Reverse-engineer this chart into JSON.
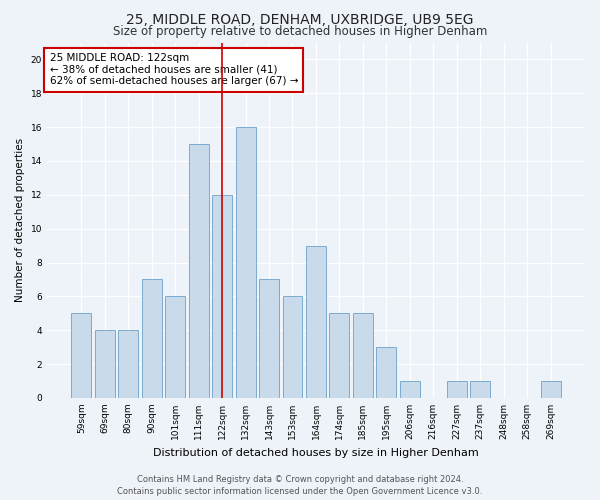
{
  "title1": "25, MIDDLE ROAD, DENHAM, UXBRIDGE, UB9 5EG",
  "title2": "Size of property relative to detached houses in Higher Denham",
  "xlabel": "Distribution of detached houses by size in Higher Denham",
  "ylabel": "Number of detached properties",
  "categories": [
    "59sqm",
    "69sqm",
    "80sqm",
    "90sqm",
    "101sqm",
    "111sqm",
    "122sqm",
    "132sqm",
    "143sqm",
    "153sqm",
    "164sqm",
    "174sqm",
    "185sqm",
    "195sqm",
    "206sqm",
    "216sqm",
    "227sqm",
    "237sqm",
    "248sqm",
    "258sqm",
    "269sqm"
  ],
  "values": [
    5,
    4,
    4,
    7,
    6,
    15,
    12,
    16,
    7,
    6,
    9,
    5,
    5,
    3,
    1,
    0,
    1,
    1,
    0,
    0,
    1
  ],
  "highlight_index": 6,
  "bar_color": "#c9daea",
  "bar_edge_color": "#7aabcf",
  "highlight_line_color": "#cc0000",
  "annotation_text": "25 MIDDLE ROAD: 122sqm\n← 38% of detached houses are smaller (41)\n62% of semi-detached houses are larger (67) →",
  "annotation_box_color": "#ffffff",
  "annotation_box_edge_color": "#cc0000",
  "ylim": [
    0,
    21
  ],
  "yticks": [
    0,
    2,
    4,
    6,
    8,
    10,
    12,
    14,
    16,
    18,
    20
  ],
  "footer_line1": "Contains HM Land Registry data © Crown copyright and database right 2024.",
  "footer_line2": "Contains public sector information licensed under the Open Government Licence v3.0.",
  "background_color": "#eef2f9",
  "grid_color": "#ffffff",
  "title1_fontsize": 10,
  "title2_fontsize": 8.5,
  "xlabel_fontsize": 8,
  "ylabel_fontsize": 7.5,
  "tick_fontsize": 6.5,
  "annotation_fontsize": 7.5,
  "footer_fontsize": 6
}
